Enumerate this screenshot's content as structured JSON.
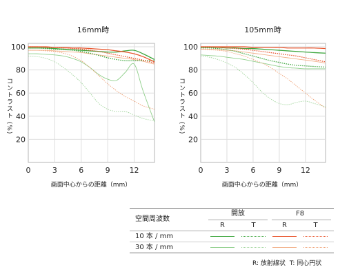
{
  "chart_data": [
    {
      "type": "line",
      "title": "16mm時",
      "xlabel": "画面中心からの距離（mm）",
      "ylabel": "コントラスト (%)",
      "xlim": [
        0,
        14.3
      ],
      "ylim": [
        0,
        103
      ],
      "xticks": [
        0,
        3,
        6,
        9,
        12
      ],
      "yticks": [
        20,
        40,
        60,
        80,
        100
      ],
      "grid": true,
      "x": [
        0,
        1,
        2,
        3,
        4,
        5,
        6,
        7,
        8,
        9,
        10,
        11,
        12,
        13,
        14.3
      ],
      "series": [
        {
          "row": 0,
          "group": 0,
          "col": 0,
          "color": "#3da63d",
          "dotted": false,
          "values": [
            99,
            99,
            99,
            98.5,
            98,
            97.5,
            97,
            96.5,
            96,
            95.5,
            95.5,
            96.5,
            97,
            94,
            89
          ]
        },
        {
          "row": 0,
          "group": 0,
          "col": 1,
          "color": "#3da63d",
          "dotted": true,
          "values": [
            99,
            99,
            98.5,
            98,
            97.5,
            97,
            96,
            94.5,
            92.5,
            90.5,
            89,
            88,
            88,
            88,
            88
          ]
        },
        {
          "row": 0,
          "group": 1,
          "col": 0,
          "color": "#e8532b",
          "dotted": false,
          "values": [
            100,
            100,
            100,
            99.5,
            99.5,
            99,
            99,
            98.5,
            98,
            97.5,
            96.5,
            95.5,
            94,
            91.5,
            87
          ]
        },
        {
          "row": 0,
          "group": 1,
          "col": 1,
          "color": "#e8532b",
          "dotted": true,
          "values": [
            100,
            100,
            99.5,
            99.5,
            99,
            98.5,
            98,
            97,
            96,
            94.5,
            93,
            91.5,
            90,
            88.5,
            86
          ]
        },
        {
          "row": 1,
          "group": 0,
          "col": 0,
          "color": "#8fcf8a",
          "dotted": false,
          "values": [
            94,
            94,
            93.5,
            93,
            92,
            90,
            87,
            82,
            76,
            72,
            71,
            78,
            85,
            62,
            35
          ]
        },
        {
          "row": 1,
          "group": 0,
          "col": 1,
          "color": "#9fd49a",
          "dotted": true,
          "values": [
            92,
            91.5,
            90,
            87,
            82,
            76,
            69,
            60,
            51,
            46,
            44,
            44,
            41,
            38,
            36
          ]
        },
        {
          "row": 1,
          "group": 1,
          "col": 0,
          "color": "#f2b088",
          "dotted": false,
          "values": [
            97,
            97,
            97,
            96.5,
            96,
            95.5,
            95,
            94,
            93,
            92,
            91,
            90,
            89,
            87.5,
            85
          ]
        },
        {
          "row": 1,
          "group": 1,
          "col": 1,
          "color": "#ef9f72",
          "dotted": true,
          "values": [
            97,
            97,
            96.5,
            96,
            94.5,
            92,
            88,
            82,
            75,
            68,
            62,
            57,
            53,
            49,
            46
          ]
        }
      ]
    },
    {
      "type": "line",
      "title": "105mm時",
      "xlabel": "画面中心からの距離（mm）",
      "ylabel": "コントラスト (%)",
      "xlim": [
        0,
        14.3
      ],
      "ylim": [
        0,
        103
      ],
      "xticks": [
        0,
        3,
        6,
        9,
        12
      ],
      "yticks": [
        20,
        40,
        60,
        80,
        100
      ],
      "grid": true,
      "x": [
        0,
        1,
        2,
        3,
        4,
        5,
        6,
        7,
        8,
        9,
        10,
        11,
        12,
        13,
        14.3
      ],
      "series": [
        {
          "row": 0,
          "group": 0,
          "col": 0,
          "color": "#3da63d",
          "dotted": false,
          "values": [
            99.5,
            99.5,
            99.5,
            99,
            99,
            98.5,
            98.5,
            98,
            97.5,
            97,
            96.5,
            96,
            95.5,
            95,
            94.5
          ]
        },
        {
          "row": 0,
          "group": 0,
          "col": 1,
          "color": "#3da63d",
          "dotted": true,
          "values": [
            99,
            99,
            98.5,
            97.5,
            96,
            94,
            92,
            90,
            88,
            86.5,
            85,
            84,
            83.5,
            83,
            82.5
          ]
        },
        {
          "row": 0,
          "group": 1,
          "col": 0,
          "color": "#e8532b",
          "dotted": false,
          "values": [
            100,
            100,
            100,
            100,
            100,
            100,
            99.5,
            99.5,
            99.5,
            99.5,
            99,
            99,
            99,
            99,
            98.5
          ]
        },
        {
          "row": 0,
          "group": 1,
          "col": 1,
          "color": "#e8532b",
          "dotted": true,
          "values": [
            100,
            100,
            99.5,
            99,
            98.5,
            98,
            97,
            96,
            95,
            94,
            93,
            92,
            90.5,
            89,
            87
          ]
        },
        {
          "row": 1,
          "group": 0,
          "col": 0,
          "color": "#8fcf8a",
          "dotted": false,
          "values": [
            93,
            92.5,
            92,
            91,
            90,
            89,
            87.5,
            86,
            84.5,
            83,
            82,
            81.5,
            81,
            81,
            81
          ]
        },
        {
          "row": 1,
          "group": 0,
          "col": 1,
          "color": "#9fd49a",
          "dotted": true,
          "values": [
            92,
            91,
            89,
            86,
            82,
            76,
            69,
            61,
            55,
            51,
            50,
            52,
            53,
            51,
            48
          ]
        },
        {
          "row": 1,
          "group": 1,
          "col": 0,
          "color": "#f2b088",
          "dotted": false,
          "values": [
            98,
            98,
            97.5,
            97,
            96.5,
            95.5,
            94.5,
            93.5,
            92.5,
            91.5,
            90.5,
            89.5,
            88.5,
            87.5,
            86
          ]
        },
        {
          "row": 1,
          "group": 1,
          "col": 1,
          "color": "#ef9f72",
          "dotted": true,
          "values": [
            98,
            97.5,
            97,
            96,
            94,
            92,
            89,
            86,
            82,
            77,
            72,
            66,
            60,
            54,
            47
          ]
        }
      ]
    }
  ],
  "legend": {
    "header_label": "空間周波数",
    "groups": [
      {
        "label": "開放",
        "cols": [
          "R",
          "T"
        ]
      },
      {
        "label": "F8",
        "cols": [
          "R",
          "T"
        ]
      }
    ],
    "rows": [
      {
        "label": "10 本 / mm"
      },
      {
        "label": "30 本 / mm"
      }
    ],
    "note_r": "R: 放射線状",
    "note_t": "T: 同心円状"
  }
}
